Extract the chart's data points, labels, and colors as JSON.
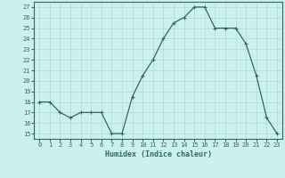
{
  "x": [
    0,
    1,
    2,
    3,
    4,
    5,
    6,
    7,
    8,
    9,
    10,
    11,
    12,
    13,
    14,
    15,
    16,
    17,
    18,
    19,
    20,
    21,
    22,
    23
  ],
  "y": [
    18,
    18,
    17,
    16.5,
    17,
    17,
    17,
    15,
    15,
    18.5,
    20.5,
    22,
    24,
    25.5,
    26,
    27,
    27,
    25,
    25,
    25,
    23.5,
    20.5,
    16.5,
    15
  ],
  "xlabel": "Humidex (Indice chaleur)",
  "xlim": [
    -0.5,
    23.5
  ],
  "ylim": [
    14.5,
    27.5
  ],
  "yticks": [
    15,
    16,
    17,
    18,
    19,
    20,
    21,
    22,
    23,
    24,
    25,
    26,
    27
  ],
  "xticks": [
    0,
    1,
    2,
    3,
    4,
    5,
    6,
    7,
    8,
    9,
    10,
    11,
    12,
    13,
    14,
    15,
    16,
    17,
    18,
    19,
    20,
    21,
    22,
    23
  ],
  "line_color": "#2E6B5E",
  "marker": "+",
  "bg_color": "#CCF0EC",
  "grid_color": "#AADDDA",
  "axis_bg": "#CCF0EC",
  "tick_label_color": "#2E6B5E",
  "spine_color": "#2E6B5E"
}
